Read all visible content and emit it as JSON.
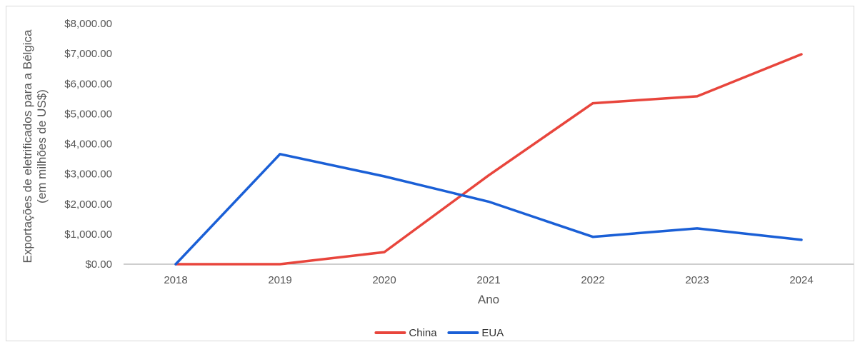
{
  "chart_data": {
    "type": "line",
    "title": "",
    "xlabel": "Ano",
    "ylabel_lines": [
      "Exportações de eletrificados para a Bélgica",
      "(em milhões de US$)"
    ],
    "categories": [
      "2018",
      "2019",
      "2020",
      "2021",
      "2022",
      "2023",
      "2024"
    ],
    "y_ticks": [
      "$0.00",
      "$1,000.00",
      "$2,000.00",
      "$3,000.00",
      "$4,000.00",
      "$5,000.00",
      "$6,000.00",
      "$7,000.00",
      "$8,000.00"
    ],
    "ylim": [
      0,
      8000
    ],
    "grid": false,
    "legend_position": "bottom",
    "series": [
      {
        "name": "China",
        "color": "#e8453c",
        "values": [
          0,
          0,
          400,
          2950,
          5350,
          5580,
          6980
        ]
      },
      {
        "name": "EUA",
        "color": "#1a5fd6",
        "values": [
          0,
          3660,
          2920,
          2080,
          910,
          1190,
          810
        ]
      }
    ]
  }
}
